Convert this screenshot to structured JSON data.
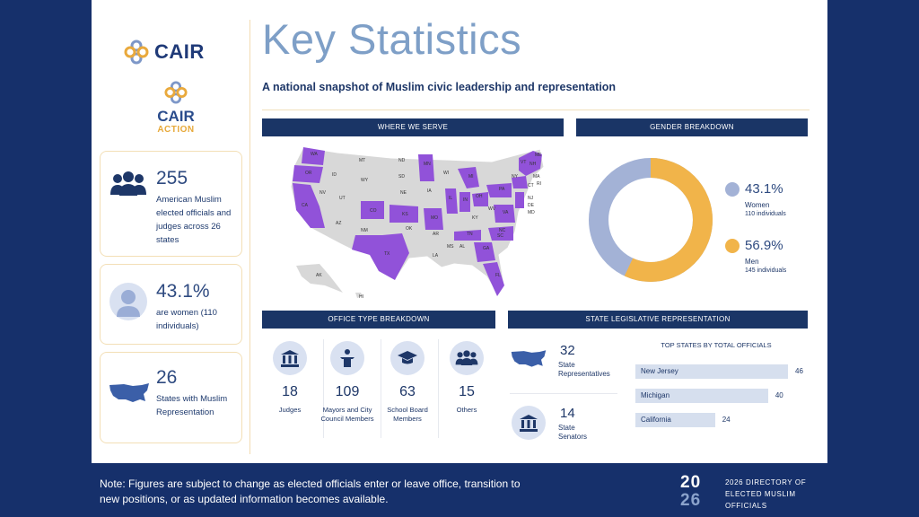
{
  "logos": {
    "cair": "CAIR",
    "cair_action_1": "CAIR",
    "cair_action_2": "ACTION"
  },
  "header": {
    "title": "Key Statistics",
    "subtitle": "A national snapshot of Muslim civic leadership and representation"
  },
  "cards": [
    {
      "num": "255",
      "text": "American Muslim elected officials and judges across 26 states",
      "icon": "people-group-icon"
    },
    {
      "num": "43.1%",
      "text": "are women (110 individuals)",
      "icon": "woman-avatar-icon"
    },
    {
      "num": "26",
      "text": "States with Muslim Representation",
      "icon": "us-map-icon"
    }
  ],
  "sections": {
    "where_we_serve": "WHERE WE SERVE",
    "gender_breakdown": "GENDER BREAKDOWN",
    "office_type": "OFFICE TYPE BREAKDOWN",
    "state_leg": "STATE LEGISLATIVE REPRESENTATION"
  },
  "map": {
    "highlight_color": "#9152d9",
    "base_color": "#d8d8d8",
    "labels": [
      "WA",
      "OR",
      "CA",
      "ID",
      "NV",
      "MT",
      "WY",
      "UT",
      "AZ",
      "CO",
      "NM",
      "ND",
      "SD",
      "NE",
      "KS",
      "OK",
      "TX",
      "MN",
      "IA",
      "MO",
      "AR",
      "LA",
      "WI",
      "IL",
      "MI",
      "IN",
      "KY",
      "TN",
      "MS",
      "AL",
      "GA",
      "FL",
      "SC",
      "NC",
      "VA",
      "WV",
      "OH",
      "PA",
      "NY",
      "VT",
      "NH",
      "ME",
      "MA",
      "RI",
      "CT",
      "NJ",
      "DE",
      "MD",
      "AK",
      "HI"
    ]
  },
  "gender": {
    "women": {
      "pct": "43.1%",
      "label": "Women",
      "count": "110 individuals",
      "color": "#a3b2d6"
    },
    "men": {
      "pct": "56.9%",
      "label": "Men",
      "count": "145 individuals",
      "color": "#f1b44a"
    }
  },
  "office_types": [
    {
      "num": "18",
      "label": "Judges",
      "icon": "courthouse-icon"
    },
    {
      "num": "109",
      "label": "Mayors and City Council Members",
      "icon": "podium-icon"
    },
    {
      "num": "63",
      "label": "School Board Members",
      "icon": "graduation-cap-icon"
    },
    {
      "num": "15",
      "label": "Others",
      "icon": "people-group-icon"
    }
  ],
  "state_leg": {
    "representatives": {
      "num": "32",
      "label": "State Representatives",
      "icon": "us-map-icon"
    },
    "senators": {
      "num": "14",
      "label": "State Senators",
      "icon": "courthouse-icon"
    },
    "top_states_title": "TOP STATES BY TOTAL OFFICIALS",
    "top_states": [
      {
        "name": "New Jersey",
        "value": "46"
      },
      {
        "name": "Michigan",
        "value": "40"
      },
      {
        "name": "California",
        "value": "24"
      }
    ]
  },
  "footer": {
    "note": "Note: Figures are subject to change as elected officials enter or leave office, transition to new positions, or as updated information becomes available.",
    "year_top": "20",
    "year_bottom": "26",
    "dir_line1": "2026 DIRECTORY OF",
    "dir_line2": "ELECTED MUSLIM",
    "dir_line3": "OFFICIALS"
  }
}
